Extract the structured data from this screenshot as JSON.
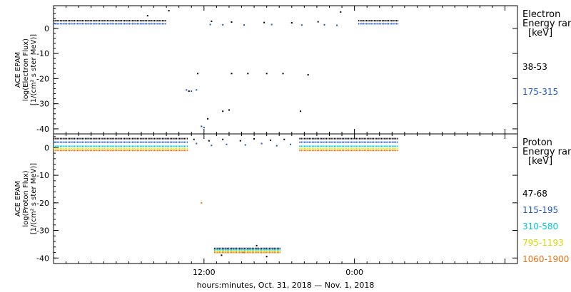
{
  "chart_data": [
    {
      "type": "scatter",
      "panel": "electron",
      "ylabel": [
        "ACE EPAM",
        "log(Electron Flux)",
        "[1/(cm² s ster MeV)]"
      ],
      "legend_title": [
        "Electron",
        "Energy ran",
        "[keV]"
      ],
      "ylim": [
        -42,
        9
      ],
      "yticks": [
        0,
        -10,
        -20,
        -30,
        -40
      ],
      "series": [
        {
          "name": "38-53",
          "color": "#000000",
          "segments": [
            {
              "from": 0,
              "to": 9.0,
              "y": 3.0
            },
            {
              "from": 24.3,
              "to": 27.5,
              "y": 3.0
            }
          ],
          "points": [
            [
              7.5,
              5.0
            ],
            [
              9.2,
              7.0
            ],
            [
              10.8,
              -25.0
            ],
            [
              11.5,
              -18.0
            ],
            [
              12.3,
              -36.0
            ],
            [
              13.5,
              -33.0
            ],
            [
              14.0,
              -32.5
            ],
            [
              14.2,
              -18.0
            ],
            [
              15.5,
              -18.0
            ],
            [
              17.0,
              -18.0
            ],
            [
              18.3,
              -18.0
            ],
            [
              19.7,
              -33.0
            ],
            [
              20.3,
              -18.5
            ],
            [
              22.9,
              6.5
            ],
            [
              12.6,
              2.8
            ],
            [
              14.2,
              2.5
            ],
            [
              16.8,
              2.3
            ],
            [
              19.0,
              2.2
            ],
            [
              21.1,
              2.6
            ]
          ]
        },
        {
          "name": "175-315",
          "color": "#1e56c8",
          "segments": [
            {
              "from": 0,
              "to": 9.0,
              "y": 1.8
            },
            {
              "from": 24.3,
              "to": 27.5,
              "y": 1.8
            }
          ],
          "points": [
            [
              10.6,
              -24.5
            ],
            [
              11.0,
              -25.0
            ],
            [
              11.4,
              -24.5
            ],
            [
              11.8,
              -39.0
            ],
            [
              12.0,
              -39.5
            ],
            [
              12.5,
              1.5
            ],
            [
              13.5,
              1.4
            ],
            [
              15.2,
              1.3
            ],
            [
              17.4,
              1.5
            ],
            [
              19.8,
              1.3
            ],
            [
              21.6,
              1.4
            ],
            [
              22.6,
              1.2
            ]
          ]
        }
      ]
    },
    {
      "type": "scatter",
      "panel": "proton",
      "ylabel": [
        "ACE EPAM",
        "log(Proton Flux)",
        "[1/(cm² s ster MeV)]"
      ],
      "legend_title": [
        "Proton",
        "Energy ran",
        "[keV]"
      ],
      "ylim": [
        -42,
        5
      ],
      "yticks": [
        0,
        -10,
        -20,
        -30,
        -40
      ],
      "series": [
        {
          "name": "47-68",
          "color": "#000000",
          "segments": [
            {
              "from": 0,
              "to": 10.7,
              "y": 3.3
            },
            {
              "from": 19.6,
              "to": 27.5,
              "y": 3.3
            },
            {
              "from": 12.8,
              "to": 18.1,
              "y": -36.5
            }
          ],
          "points": [
            [
              11.2,
              3.0
            ],
            [
              12.4,
              2.5
            ],
            [
              13.5,
              3.0
            ],
            [
              14.9,
              2.5
            ],
            [
              16.0,
              3.2
            ],
            [
              17.3,
              2.7
            ],
            [
              18.4,
              3.0
            ],
            [
              22.9,
              5.5
            ],
            [
              13.4,
              -39.0
            ],
            [
              15.1,
              -38.0
            ],
            [
              17.0,
              -39.5
            ],
            [
              16.2,
              -35.5
            ]
          ]
        },
        {
          "name": "115-195",
          "color": "#1e56c8",
          "segments": [
            {
              "from": 0,
              "to": 10.7,
              "y": 2.0
            },
            {
              "from": 19.6,
              "to": 27.5,
              "y": 2.0
            },
            {
              "from": 12.8,
              "to": 18.1,
              "y": -36.8
            }
          ],
          "points": [
            [
              11.4,
              1.5
            ],
            [
              12.6,
              0.8
            ],
            [
              13.8,
              1.2
            ],
            [
              15.3,
              1.0
            ],
            [
              16.6,
              1.5
            ],
            [
              17.8,
              0.7
            ],
            [
              18.9,
              1.2
            ]
          ]
        },
        {
          "name": "310-580",
          "color": "#00c8d8",
          "segments": [
            {
              "from": 0,
              "to": 10.7,
              "y": 0.5
            },
            {
              "from": 19.6,
              "to": 27.5,
              "y": 0.5
            },
            {
              "from": 12.8,
              "to": 18.1,
              "y": -37.0
            }
          ],
          "points": []
        },
        {
          "name": "795-1193",
          "color": "#e8e800",
          "segments": [
            {
              "from": 0,
              "to": 10.7,
              "y": -0.3
            },
            {
              "from": 19.6,
              "to": 27.5,
              "y": -0.3
            },
            {
              "from": 12.8,
              "to": 18.1,
              "y": -37.5
            }
          ],
          "points": []
        },
        {
          "name": "1060-1900",
          "color": "#e87010",
          "segments": [
            {
              "from": 0,
              "to": 10.7,
              "y": -1.0
            },
            {
              "from": 19.6,
              "to": 27.5,
              "y": -1.0
            },
            {
              "from": 12.8,
              "to": 18.1,
              "y": -38.0
            }
          ],
          "points": [
            [
              11.8,
              -20.0
            ]
          ]
        }
      ]
    }
  ],
  "x_axis": {
    "xlim_hours": [
      0,
      37
    ],
    "ticks": [
      {
        "h": 12,
        "label": "12:00"
      },
      {
        "h": 24,
        "label": "0:00"
      }
    ],
    "label": "hours:minutes, Oct. 31, 2018 — Nov. 1, 2018"
  }
}
